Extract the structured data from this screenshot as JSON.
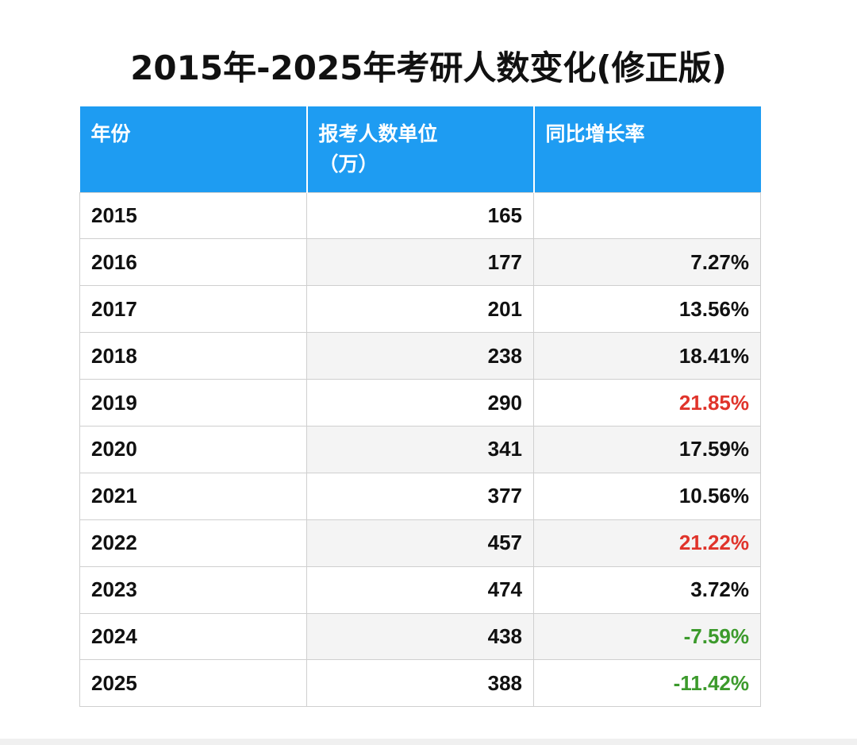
{
  "title": "2015年-2025年考研人数变化(修正版)",
  "colors": {
    "header_bg": "#1e9cf2",
    "header_text": "#ffffff",
    "increase_high": "#e0342b",
    "decrease": "#3c9a2c",
    "normal": "#111111"
  },
  "chart_data": {
    "type": "table",
    "title": "2015年-2025年考研人数变化(修正版)",
    "columns": [
      "年份",
      "报考人数单位（万）",
      "同比增长率"
    ],
    "header_lines": {
      "col2_line1": "报考人数单位",
      "col2_line2": "（万）"
    },
    "rows": [
      {
        "year": "2015",
        "count": "165",
        "rate": "",
        "rate_color": "black"
      },
      {
        "year": "2016",
        "count": "177",
        "rate": "7.27%",
        "rate_color": "black"
      },
      {
        "year": "2017",
        "count": "201",
        "rate": "13.56%",
        "rate_color": "black"
      },
      {
        "year": "2018",
        "count": "238",
        "rate": "18.41%",
        "rate_color": "black"
      },
      {
        "year": "2019",
        "count": "290",
        "rate": "21.85%",
        "rate_color": "red"
      },
      {
        "year": "2020",
        "count": "341",
        "rate": "17.59%",
        "rate_color": "black"
      },
      {
        "year": "2021",
        "count": "377",
        "rate": "10.56%",
        "rate_color": "black"
      },
      {
        "year": "2022",
        "count": "457",
        "rate": "21.22%",
        "rate_color": "red"
      },
      {
        "year": "2023",
        "count": "474",
        "rate": "3.72%",
        "rate_color": "black"
      },
      {
        "year": "2024",
        "count": "438",
        "rate": "-7.59%",
        "rate_color": "green"
      },
      {
        "year": "2025",
        "count": "388",
        "rate": "-11.42%",
        "rate_color": "green"
      }
    ]
  }
}
